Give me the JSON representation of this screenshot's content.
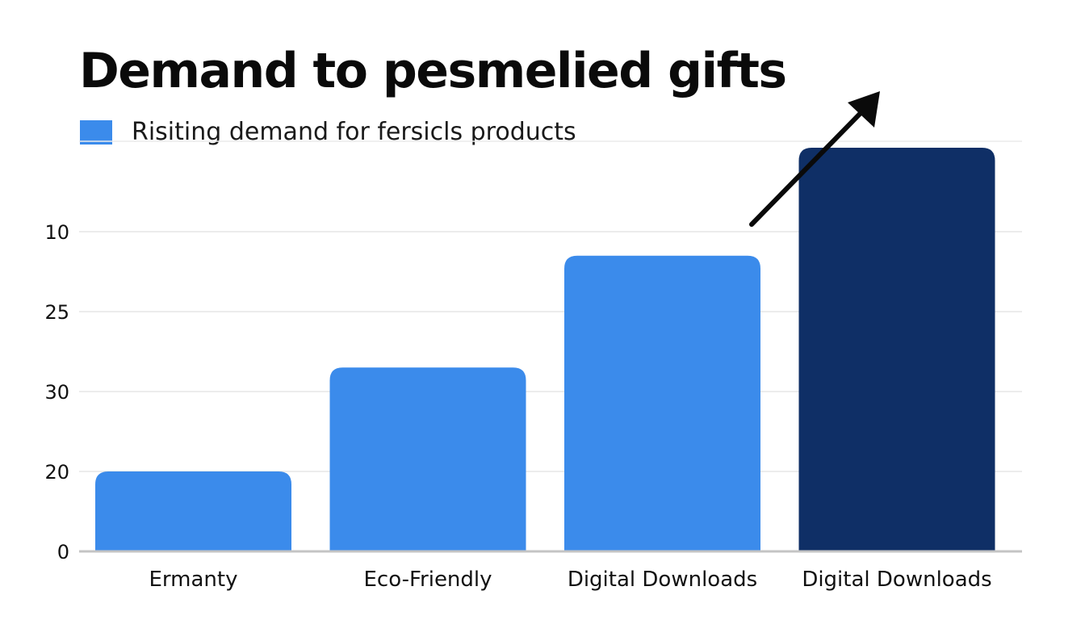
{
  "chart_data": {
    "type": "bar",
    "title": "Demand to pesmelied gifts",
    "legend": [
      {
        "label": "Risiting demand for fersicls products",
        "color": "#3b8beb"
      }
    ],
    "categories": [
      "Ermanty",
      "Eco-Friendly",
      "Digital Downloads",
      "Digital Downloads"
    ],
    "values": [
      1,
      2.3,
      3.7,
      5.05
    ],
    "bar_colors": [
      "#3b8beb",
      "#3b8beb",
      "#3b8beb",
      "#0f2f66"
    ],
    "yticks": [
      {
        "value": 0,
        "label": "0"
      },
      {
        "value": 1,
        "label": "20"
      },
      {
        "value": 2,
        "label": "30"
      },
      {
        "value": 3,
        "label": "25"
      },
      {
        "value": 4,
        "label": "10"
      }
    ],
    "ylim": [
      0,
      5
    ],
    "grid": true,
    "trend_arrow": true,
    "xlabel": "",
    "ylabel": ""
  }
}
